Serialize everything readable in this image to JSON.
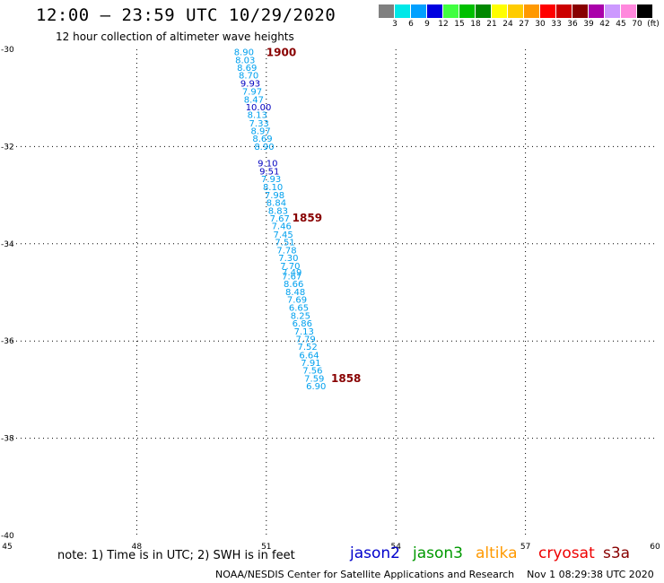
{
  "header": {
    "title": "12:00 – 23:59 UTC 10/29/2020",
    "subtitle": "12 hour collection of altimeter wave heights"
  },
  "colorbar": {
    "colors": [
      "#808080",
      "#00e8e8",
      "#00a0ff",
      "#0000e0",
      "#40ff40",
      "#00c000",
      "#008800",
      "#ffff00",
      "#ffcc00",
      "#ff9900",
      "#ff0000",
      "#cc0000",
      "#880000",
      "#aa00aa",
      "#cc99ff",
      "#ff88dd",
      "#000000"
    ],
    "labels": [
      "3",
      "6",
      "9",
      "12",
      "15",
      "18",
      "21",
      "24",
      "27",
      "30",
      "33",
      "36",
      "39",
      "42",
      "45",
      "70",
      "(ft)"
    ]
  },
  "footer": {
    "note": "note: 1) Time is in UTC; 2) SWH is in feet",
    "credit": "NOAA/NESDIS Center for Satellite Applications and Research",
    "timestamp": "Nov  1 08:29:38 UTC 2020"
  },
  "satellites": [
    {
      "name": "jason2",
      "color": "#0000cc"
    },
    {
      "name": "jason3",
      "color": "#009900"
    },
    {
      "name": "altika",
      "color": "#ff9900"
    },
    {
      "name": "cryosat",
      "color": "#ee0000"
    },
    {
      "name": "s3a",
      "color": "#880000"
    }
  ],
  "chart_data": {
    "type": "scatter",
    "xlim": [
      45,
      60
    ],
    "ylim": [
      -40,
      -30
    ],
    "x_ticks": [
      "45",
      "48",
      "51",
      "54",
      "57",
      "60"
    ],
    "y_ticks": [
      "-30",
      "-32",
      "-34",
      "-36",
      "-38",
      "-40"
    ],
    "grid": true,
    "time_labels": [
      {
        "text": "1900",
        "lon": 51.0,
        "lat": -30.05
      },
      {
        "text": "1859",
        "lon": 51.6,
        "lat": -33.45
      },
      {
        "text": "1858",
        "lon": 52.5,
        "lat": -36.75
      }
    ],
    "points": [
      {
        "lon": 50.25,
        "lat": -30.05,
        "v": "8.90"
      },
      {
        "lon": 50.28,
        "lat": -30.21,
        "v": "8.03"
      },
      {
        "lon": 50.32,
        "lat": -30.37,
        "v": "8.69"
      },
      {
        "lon": 50.36,
        "lat": -30.53,
        "v": "8.70"
      },
      {
        "lon": 50.4,
        "lat": -30.69,
        "v": "9.93"
      },
      {
        "lon": 50.44,
        "lat": -30.86,
        "v": "7.97"
      },
      {
        "lon": 50.48,
        "lat": -31.02,
        "v": "8.47"
      },
      {
        "lon": 50.52,
        "lat": -31.18,
        "v": "10.00"
      },
      {
        "lon": 50.56,
        "lat": -31.34,
        "v": "8.13"
      },
      {
        "lon": 50.6,
        "lat": -31.51,
        "v": "7.33"
      },
      {
        "lon": 50.64,
        "lat": -31.67,
        "v": "8.97"
      },
      {
        "lon": 50.68,
        "lat": -31.83,
        "v": "8.69"
      },
      {
        "lon": 50.72,
        "lat": -31.99,
        "v": "8.90"
      },
      {
        "lon": 50.8,
        "lat": -32.33,
        "v": "9.10"
      },
      {
        "lon": 50.84,
        "lat": -32.5,
        "v": "9.51"
      },
      {
        "lon": 50.88,
        "lat": -32.66,
        "v": "7.93"
      },
      {
        "lon": 50.92,
        "lat": -32.82,
        "v": "8.10"
      },
      {
        "lon": 50.96,
        "lat": -32.99,
        "v": "7.98"
      },
      {
        "lon": 51.0,
        "lat": -33.15,
        "v": "8.84"
      },
      {
        "lon": 51.04,
        "lat": -33.31,
        "v": "8.83"
      },
      {
        "lon": 51.08,
        "lat": -33.47,
        "v": "7.67"
      },
      {
        "lon": 51.12,
        "lat": -33.63,
        "v": "7.46"
      },
      {
        "lon": 51.16,
        "lat": -33.8,
        "v": "7.45"
      },
      {
        "lon": 51.2,
        "lat": -33.96,
        "v": "7.51"
      },
      {
        "lon": 51.24,
        "lat": -34.12,
        "v": "7.78"
      },
      {
        "lon": 51.28,
        "lat": -34.28,
        "v": "7.30"
      },
      {
        "lon": 51.32,
        "lat": -34.45,
        "v": "7.70"
      },
      {
        "lon": 51.36,
        "lat": -34.58,
        "v": "7.49"
      },
      {
        "lon": 51.36,
        "lat": -34.66,
        "v": "7.67"
      },
      {
        "lon": 51.4,
        "lat": -34.82,
        "v": "8.66"
      },
      {
        "lon": 51.44,
        "lat": -34.98,
        "v": "8.48"
      },
      {
        "lon": 51.48,
        "lat": -35.14,
        "v": "7.69"
      },
      {
        "lon": 51.52,
        "lat": -35.3,
        "v": "6.65"
      },
      {
        "lon": 51.56,
        "lat": -35.47,
        "v": "8.25"
      },
      {
        "lon": 51.6,
        "lat": -35.63,
        "v": "6.86"
      },
      {
        "lon": 51.64,
        "lat": -35.79,
        "v": "7.13"
      },
      {
        "lon": 51.68,
        "lat": -35.95,
        "v": "7.79"
      },
      {
        "lon": 51.72,
        "lat": -36.11,
        "v": "7.52"
      },
      {
        "lon": 51.76,
        "lat": -36.28,
        "v": "6.64"
      },
      {
        "lon": 51.8,
        "lat": -36.44,
        "v": "7.91"
      },
      {
        "lon": 51.84,
        "lat": -36.6,
        "v": "7.56"
      },
      {
        "lon": 51.88,
        "lat": -36.76,
        "v": "7.59"
      },
      {
        "lon": 51.92,
        "lat": -36.92,
        "v": "6.90"
      }
    ]
  }
}
